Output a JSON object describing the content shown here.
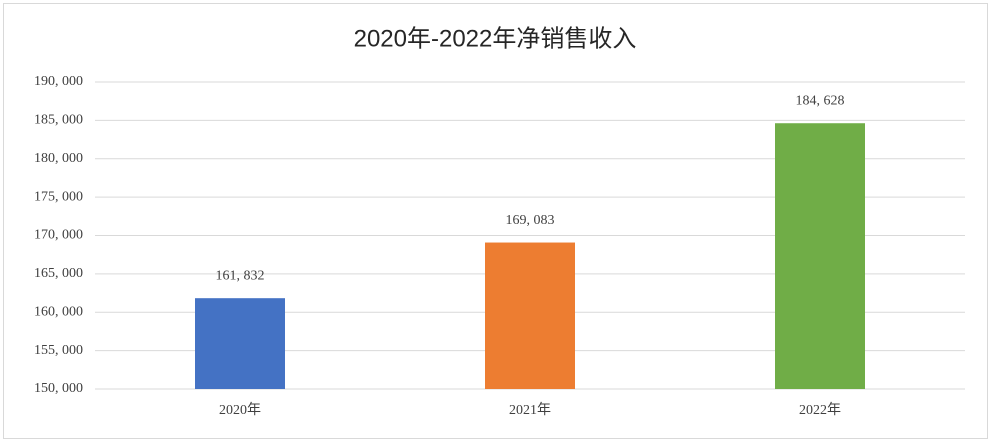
{
  "chart_data": {
    "type": "bar",
    "title": "2020年-2022年净销售收入",
    "categories": [
      "2020年",
      "2021年",
      "2022年"
    ],
    "values": [
      161832,
      169083,
      184628
    ],
    "value_labels": [
      "161, 832",
      "169, 083",
      "184, 628"
    ],
    "colors": [
      "#4472c4",
      "#ed7d31",
      "#70ad47"
    ],
    "ylim": [
      150000,
      190000
    ],
    "yticks": [
      {
        "value": 150000,
        "label": "150, 000"
      },
      {
        "value": 155000,
        "label": "155, 000"
      },
      {
        "value": 160000,
        "label": "160, 000"
      },
      {
        "value": 165000,
        "label": "165, 000"
      },
      {
        "value": 170000,
        "label": "170, 000"
      },
      {
        "value": 175000,
        "label": "175, 000"
      },
      {
        "value": 180000,
        "label": "180, 000"
      },
      {
        "value": 185000,
        "label": "185, 000"
      },
      {
        "value": 190000,
        "label": "190, 000"
      }
    ],
    "grid": true
  }
}
